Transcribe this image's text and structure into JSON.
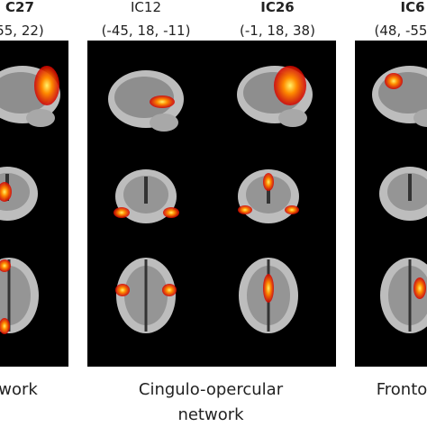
{
  "columns": [
    {
      "title": "C27",
      "coords": "55, 22)"
    },
    {
      "title": "IC12",
      "coords": "(-45, 18, -11)"
    },
    {
      "title": "IC26",
      "coords": "(-1, 18, 38)"
    },
    {
      "title": "IC6",
      "coords": "(48, -55"
    }
  ],
  "captions": [
    {
      "lines": [
        "work"
      ]
    },
    {
      "lines": [
        "Cingulo-opercular",
        "network"
      ]
    },
    {
      "lines": [
        "Fronto"
      ]
    }
  ]
}
